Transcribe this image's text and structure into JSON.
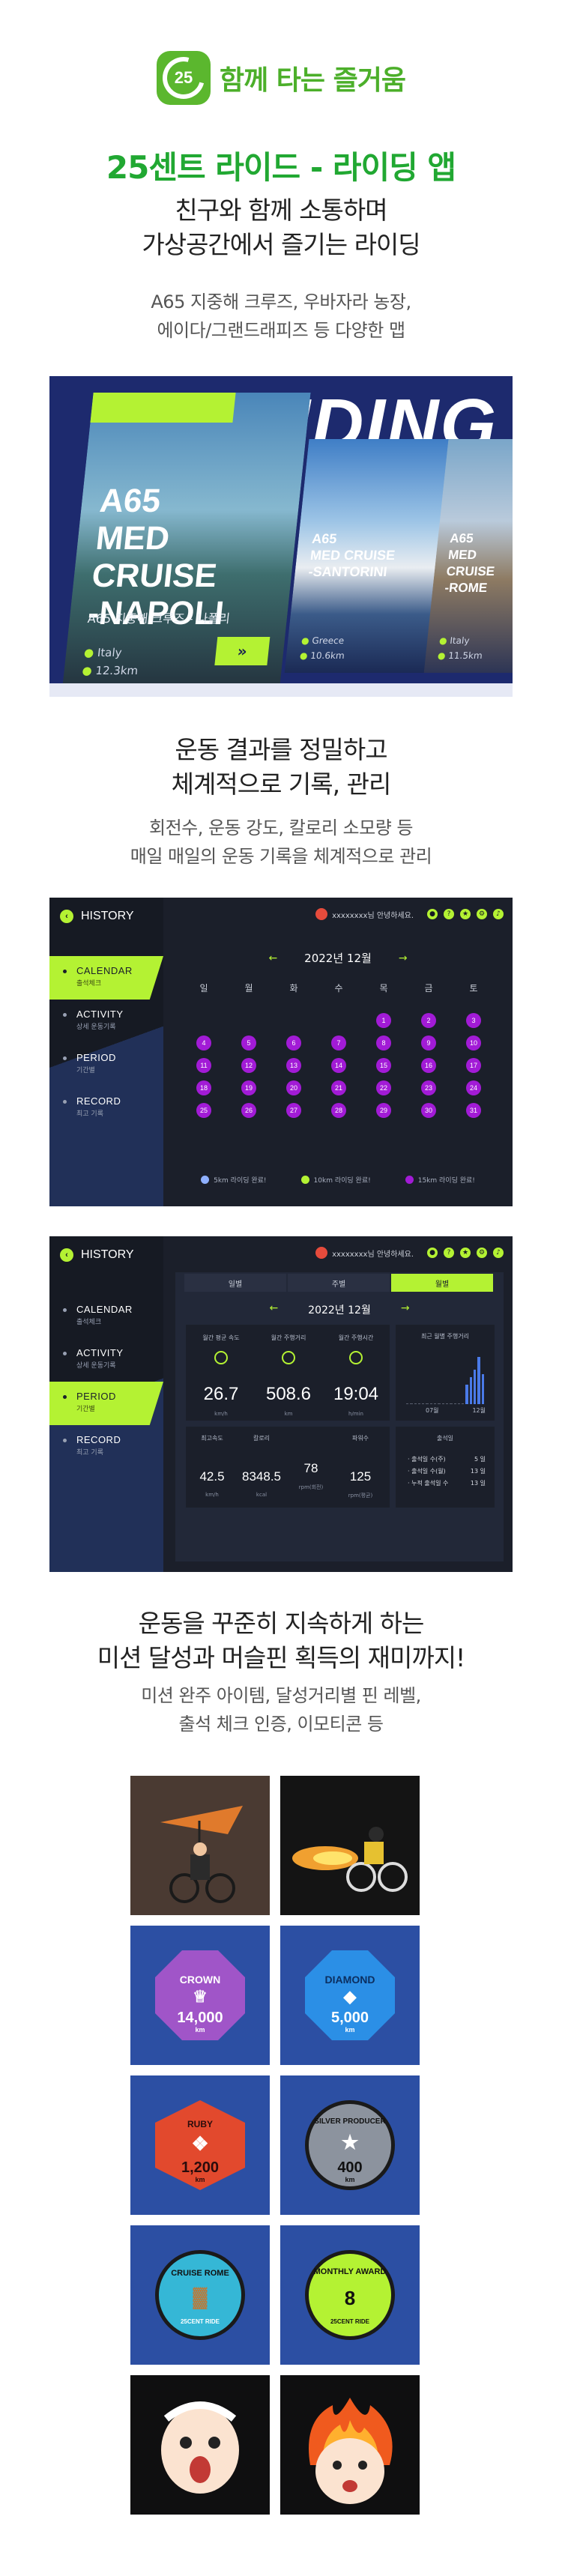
{
  "logo": {
    "badge_num": "25",
    "text": "함께 타는 즐거움"
  },
  "app_title": "25센트 라이드 - 라이딩 앱",
  "section1": {
    "head": [
      "친구와 함께 소통하며",
      "가상공간에서 즐기는 라이딩"
    ],
    "sub": [
      "A65 지중해 크루즈, 우바자라 농장,",
      "에이다/그랜드래피즈 등 다양한 맵"
    ]
  },
  "hero": {
    "bg_text": "RIDING CO",
    "cards": [
      {
        "title": "A65\nMED CRUISE\n-NAPOLI",
        "subtitle": "A65 지중해 크루즈 - 나폴리",
        "country": "Italy",
        "distance": "12.3km",
        "button": "»"
      },
      {
        "title": "A65\nMED CRUISE\n-SANTORINI",
        "country": "Greece",
        "distance": "10.6km"
      },
      {
        "title": "A65\nMED CRUISE\n-ROME",
        "country": "Italy",
        "distance": "11.5km"
      }
    ]
  },
  "section2": {
    "head": [
      "운동 결과를 정밀하고",
      "체계적으로 기록, 관리"
    ],
    "sub": [
      "회전수, 운동 강도, 칼로리 소모량 등",
      "매일 매일의 운동 기록을 체계적으로 관리"
    ]
  },
  "history": {
    "title": "HISTORY",
    "user": "xxxxxxxx님 안녕하세요.",
    "menu": [
      {
        "en": "CALENDAR",
        "ko": "출석체크"
      },
      {
        "en": "ACTIVITY",
        "ko": "상세 운동기록"
      },
      {
        "en": "PERIOD",
        "ko": "기간별"
      },
      {
        "en": "RECORD",
        "ko": "최고 기록"
      }
    ],
    "top_icons": [
      "person-icon",
      "help-icon",
      "trophy-icon",
      "gear-icon",
      "volume-icon"
    ]
  },
  "calendar": {
    "month": "2022년 12월",
    "dow": [
      "일",
      "월",
      "화",
      "수",
      "목",
      "금",
      "토"
    ],
    "first_weekday": 4,
    "days": 31,
    "legend": [
      {
        "label": "5km 라이딩 완료!",
        "color": "#8fb0ff"
      },
      {
        "label": "10km 라이딩 완료!",
        "color": "#b4f233"
      },
      {
        "label": "15km 라이딩 완료!",
        "color": "#a21bd6"
      }
    ]
  },
  "period": {
    "tabs": [
      "일별",
      "주별",
      "월별"
    ],
    "active_tab": 2,
    "month": "2022년 12월",
    "stats": [
      {
        "label": "월간 평균 속도",
        "value": "26.7",
        "unit": "km/h"
      },
      {
        "label": "월간 주행거리",
        "value": "508.6",
        "unit": "km"
      },
      {
        "label": "월간 주행시간",
        "value": "19:04",
        "unit": "h/min"
      }
    ],
    "chart_title": "최근 월별 주행거리",
    "chart_peak": "508.6",
    "chart_x": [
      "07월",
      "12월"
    ],
    "stats2": [
      {
        "label": "최고속도",
        "value": "42.5",
        "unit": "km/h"
      },
      {
        "label": "칼로리",
        "value": "8348.5",
        "unit": "kcal"
      },
      {
        "label": "",
        "value": "78",
        "unit": "rpm(회전)"
      },
      {
        "label": "파워수",
        "value": "125",
        "unit": "rpm(평균)"
      }
    ],
    "attendance_title": "출석일",
    "attendance": [
      {
        "label": "· 출석일 수(주)",
        "value": "5 일"
      },
      {
        "label": "· 출석일 수(월)",
        "value": "13 일"
      },
      {
        "label": "· 누적 출석일 수",
        "value": "13 일"
      }
    ]
  },
  "section3": {
    "head": [
      "운동을 꾸준히 지속하게 하는",
      "미션 달성과 머슬핀 획득의 재미까지!"
    ],
    "sub": [
      "미션 완주 아이템, 달성거리별 핀 레벨,",
      "출석 체크 인증, 이모티콘 등"
    ]
  },
  "badges": [
    {
      "name": "hang-glider-rider",
      "label": "",
      "bg": "#4a3a32"
    },
    {
      "name": "rocket-rider",
      "label": "",
      "bg": "#141414"
    },
    {
      "name": "crown",
      "label": "CROWN",
      "value": "14,000",
      "unit": "km",
      "color": "#a055c8"
    },
    {
      "name": "diamond",
      "label": "DIAMOND",
      "value": "5,000",
      "unit": "km",
      "color": "#2b8fe6"
    },
    {
      "name": "ruby",
      "label": "RUBY",
      "value": "1,200",
      "unit": "km",
      "color": "#e2492d"
    },
    {
      "name": "silver-producer",
      "label": "SILVER PRODUCER",
      "value": "400",
      "unit": "km",
      "color": "#8c939e"
    },
    {
      "name": "cruise-rome",
      "label": "CRUISE ROME",
      "value": "",
      "footer": "25CENT RIDE",
      "color": "#35b7d6"
    },
    {
      "name": "monthly-award",
      "label": "MONTHLY AWARD",
      "value": "8",
      "footer": "25CENT RIDE",
      "color": "#b4f233"
    },
    {
      "name": "shocked-emoticon",
      "label": "",
      "bg": "#0f0f10"
    },
    {
      "name": "fire-emoticon",
      "label": "",
      "bg": "#0f0f10"
    }
  ]
}
